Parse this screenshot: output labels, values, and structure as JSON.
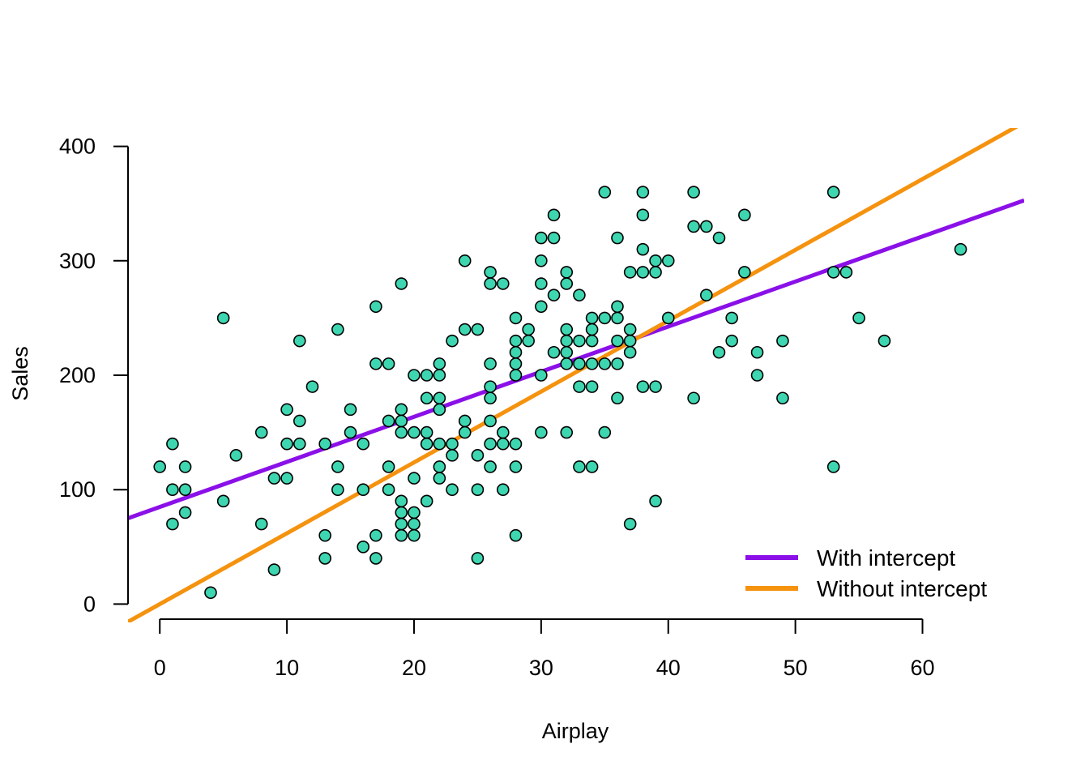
{
  "chart_data": {
    "type": "scatter",
    "xlabel": "Airplay",
    "ylabel": "Sales",
    "xlim": [
      -2.5,
      68
    ],
    "ylim": [
      -16,
      416
    ],
    "x_ticks": [
      0,
      10,
      20,
      30,
      40,
      50,
      60
    ],
    "y_ticks": [
      0,
      100,
      200,
      300,
      400
    ],
    "x_tick_labels": [
      "0",
      "10",
      "20",
      "30",
      "40",
      "50",
      "60"
    ],
    "y_tick_labels": [
      "0",
      "100",
      "200",
      "300",
      "400"
    ],
    "grid": false,
    "legend_position": "bottom-right",
    "point_color": "#3ed6b0",
    "point_edge_color": "#000000",
    "points": [
      [
        0,
        120
      ],
      [
        1,
        140
      ],
      [
        1,
        100
      ],
      [
        1,
        70
      ],
      [
        2,
        120
      ],
      [
        2,
        100
      ],
      [
        2,
        80
      ],
      [
        4,
        10
      ],
      [
        5,
        250
      ],
      [
        5,
        90
      ],
      [
        6,
        130
      ],
      [
        8,
        150
      ],
      [
        8,
        70
      ],
      [
        9,
        110
      ],
      [
        9,
        30
      ],
      [
        10,
        170
      ],
      [
        10,
        140
      ],
      [
        10,
        110
      ],
      [
        11,
        230
      ],
      [
        11,
        160
      ],
      [
        11,
        140
      ],
      [
        12,
        190
      ],
      [
        13,
        140
      ],
      [
        13,
        60
      ],
      [
        13,
        40
      ],
      [
        14,
        240
      ],
      [
        14,
        120
      ],
      [
        14,
        100
      ],
      [
        15,
        170
      ],
      [
        15,
        150
      ],
      [
        16,
        140
      ],
      [
        16,
        100
      ],
      [
        16,
        50
      ],
      [
        17,
        260
      ],
      [
        17,
        210
      ],
      [
        17,
        60
      ],
      [
        17,
        40
      ],
      [
        18,
        210
      ],
      [
        18,
        160
      ],
      [
        18,
        120
      ],
      [
        18,
        100
      ],
      [
        19,
        280
      ],
      [
        19,
        170
      ],
      [
        19,
        160
      ],
      [
        19,
        150
      ],
      [
        19,
        90
      ],
      [
        19,
        80
      ],
      [
        19,
        70
      ],
      [
        19,
        60
      ],
      [
        20,
        200
      ],
      [
        20,
        150
      ],
      [
        20,
        110
      ],
      [
        20,
        80
      ],
      [
        20,
        70
      ],
      [
        20,
        60
      ],
      [
        21,
        200
      ],
      [
        21,
        180
      ],
      [
        21,
        150
      ],
      [
        21,
        140
      ],
      [
        21,
        90
      ],
      [
        22,
        210
      ],
      [
        22,
        200
      ],
      [
        22,
        180
      ],
      [
        22,
        170
      ],
      [
        22,
        140
      ],
      [
        22,
        120
      ],
      [
        22,
        110
      ],
      [
        23,
        230
      ],
      [
        23,
        140
      ],
      [
        23,
        130
      ],
      [
        23,
        100
      ],
      [
        24,
        300
      ],
      [
        24,
        240
      ],
      [
        24,
        160
      ],
      [
        24,
        150
      ],
      [
        25,
        240
      ],
      [
        25,
        130
      ],
      [
        25,
        100
      ],
      [
        25,
        40
      ],
      [
        26,
        290
      ],
      [
        26,
        280
      ],
      [
        26,
        210
      ],
      [
        26,
        190
      ],
      [
        26,
        180
      ],
      [
        26,
        160
      ],
      [
        26,
        140
      ],
      [
        26,
        120
      ],
      [
        27,
        280
      ],
      [
        27,
        150
      ],
      [
        27,
        140
      ],
      [
        27,
        100
      ],
      [
        28,
        250
      ],
      [
        28,
        230
      ],
      [
        28,
        220
      ],
      [
        28,
        210
      ],
      [
        28,
        200
      ],
      [
        28,
        140
      ],
      [
        28,
        120
      ],
      [
        28,
        60
      ],
      [
        29,
        240
      ],
      [
        29,
        230
      ],
      [
        30,
        320
      ],
      [
        30,
        300
      ],
      [
        30,
        280
      ],
      [
        30,
        260
      ],
      [
        30,
        200
      ],
      [
        30,
        150
      ],
      [
        31,
        340
      ],
      [
        31,
        320
      ],
      [
        31,
        270
      ],
      [
        31,
        220
      ],
      [
        32,
        290
      ],
      [
        32,
        280
      ],
      [
        32,
        240
      ],
      [
        32,
        230
      ],
      [
        32,
        220
      ],
      [
        32,
        210
      ],
      [
        32,
        150
      ],
      [
        33,
        270
      ],
      [
        33,
        230
      ],
      [
        33,
        210
      ],
      [
        33,
        190
      ],
      [
        33,
        120
      ],
      [
        34,
        250
      ],
      [
        34,
        240
      ],
      [
        34,
        230
      ],
      [
        34,
        210
      ],
      [
        34,
        190
      ],
      [
        34,
        120
      ],
      [
        35,
        360
      ],
      [
        35,
        250
      ],
      [
        35,
        210
      ],
      [
        35,
        150
      ],
      [
        36,
        320
      ],
      [
        36,
        260
      ],
      [
        36,
        250
      ],
      [
        36,
        230
      ],
      [
        36,
        210
      ],
      [
        36,
        180
      ],
      [
        37,
        290
      ],
      [
        37,
        240
      ],
      [
        37,
        230
      ],
      [
        37,
        220
      ],
      [
        37,
        70
      ],
      [
        38,
        360
      ],
      [
        38,
        340
      ],
      [
        38,
        310
      ],
      [
        38,
        290
      ],
      [
        38,
        190
      ],
      [
        39,
        300
      ],
      [
        39,
        290
      ],
      [
        39,
        190
      ],
      [
        39,
        90
      ],
      [
        40,
        300
      ],
      [
        40,
        250
      ],
      [
        42,
        360
      ],
      [
        42,
        330
      ],
      [
        42,
        180
      ],
      [
        43,
        330
      ],
      [
        43,
        270
      ],
      [
        44,
        320
      ],
      [
        44,
        220
      ],
      [
        45,
        250
      ],
      [
        45,
        230
      ],
      [
        46,
        340
      ],
      [
        46,
        290
      ],
      [
        47,
        220
      ],
      [
        47,
        200
      ],
      [
        49,
        230
      ],
      [
        49,
        180
      ],
      [
        53,
        360
      ],
      [
        53,
        290
      ],
      [
        53,
        120
      ],
      [
        54,
        290
      ],
      [
        55,
        250
      ],
      [
        57,
        230
      ],
      [
        63,
        310
      ]
    ],
    "series": [
      {
        "name": "With intercept",
        "intercept": 84.87,
        "slope": 3.94,
        "color": "#8b10e8"
      },
      {
        "name": "Without intercept",
        "intercept": 0,
        "slope": 6.19,
        "color": "#f5920e"
      }
    ]
  }
}
